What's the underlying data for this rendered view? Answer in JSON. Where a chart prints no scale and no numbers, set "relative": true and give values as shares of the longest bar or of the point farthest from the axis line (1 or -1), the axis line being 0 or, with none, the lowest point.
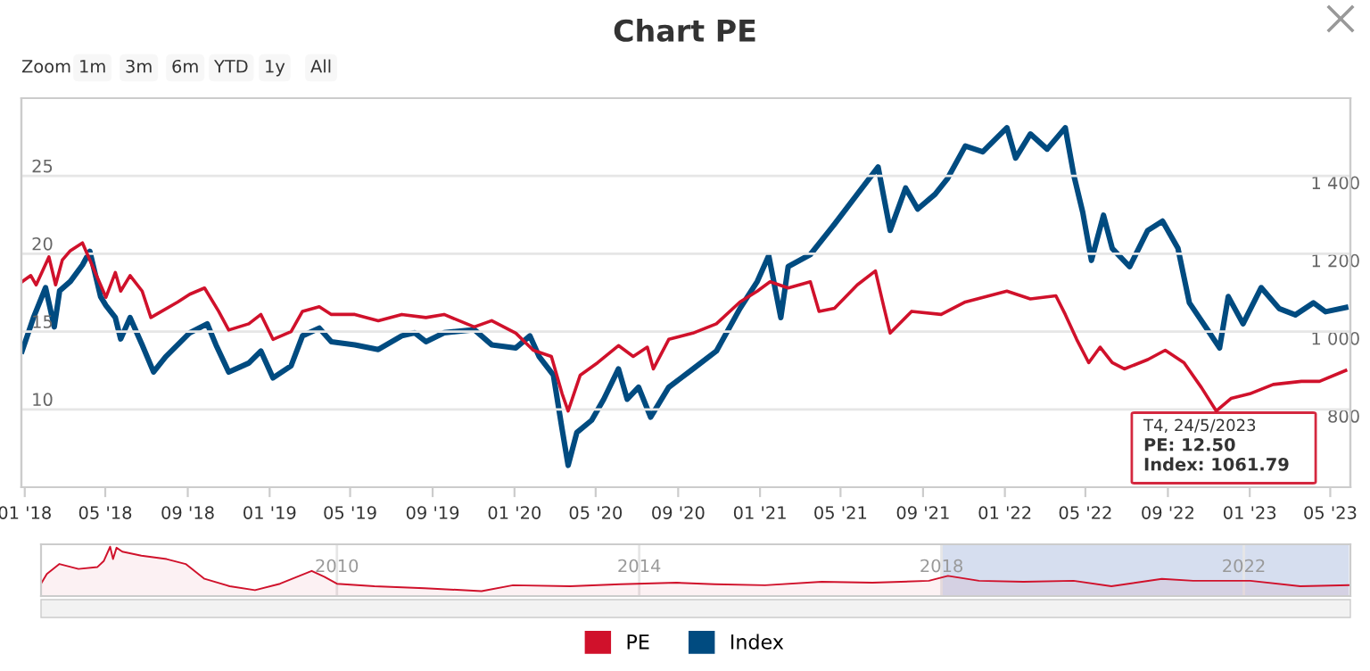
{
  "chart_data": [
    {
      "type": "line",
      "title": "Chart PE",
      "legend": "bottom",
      "grid": "y",
      "xlim": [
        "2017-12-27",
        "2023-05-31"
      ],
      "xticks": [
        {
          "value": "2018-01-01",
          "label": "01 '18"
        },
        {
          "value": "2018-05-01",
          "label": "05 '18"
        },
        {
          "value": "2018-09-01",
          "label": "09 '18"
        },
        {
          "value": "2019-01-01",
          "label": "01 '19"
        },
        {
          "value": "2019-05-01",
          "label": "05 '19"
        },
        {
          "value": "2019-09-01",
          "label": "09 '19"
        },
        {
          "value": "2020-01-01",
          "label": "01 '20"
        },
        {
          "value": "2020-05-01",
          "label": "05 '20"
        },
        {
          "value": "2020-09-01",
          "label": "09 '20"
        },
        {
          "value": "2021-01-01",
          "label": "01 '21"
        },
        {
          "value": "2021-05-01",
          "label": "05 '21"
        },
        {
          "value": "2021-09-01",
          "label": "09 '21"
        },
        {
          "value": "2022-01-01",
          "label": "01 '22"
        },
        {
          "value": "2022-05-01",
          "label": "05 '22"
        },
        {
          "value": "2022-09-01",
          "label": "09 '22"
        },
        {
          "value": "2023-01-01",
          "label": "01 '23"
        },
        {
          "value": "2023-05-01",
          "label": "05 '23"
        }
      ],
      "ylim": [
        5,
        30
      ],
      "yticks": [
        10,
        15,
        20,
        25
      ],
      "y2lim": [
        600,
        1600
      ],
      "y2ticks": [
        {
          "value": 800,
          "label": "800"
        },
        {
          "value": 1000,
          "label": "1 000"
        },
        {
          "value": 1200,
          "label": "1 200"
        },
        {
          "value": 1400,
          "label": "1 400"
        }
      ],
      "annotations": [
        "Zoom",
        "1m",
        "3m",
        "6m",
        "YTD",
        "1y",
        "All",
        "T4, 24/5/2023",
        "PE: 12.50",
        "Index: 1061.79"
      ],
      "series": [
        {
          "name": "PE",
          "color": "#d0112b",
          "x": [
            "2017-12-28",
            "2018-01-10",
            "2018-01-18",
            "2018-02-06",
            "2018-02-16",
            "2018-02-26",
            "2018-03-10",
            "2018-03-28",
            "2018-04-24",
            "2018-05-02",
            "2018-05-16",
            "2018-05-24",
            "2018-06-07",
            "2018-06-25",
            "2018-07-08",
            "2018-07-16",
            "2018-08-17",
            "2018-09-04",
            "2018-09-26",
            "2018-10-17",
            "2018-11-01",
            "2018-12-01",
            "2018-12-19",
            "2019-01-06",
            "2019-02-02",
            "2019-02-19",
            "2019-03-16",
            "2019-04-03",
            "2019-05-08",
            "2019-06-12",
            "2019-07-17",
            "2019-08-22",
            "2019-09-18",
            "2019-11-02",
            "2019-11-28",
            "2020-01-03",
            "2020-01-29",
            "2020-02-25",
            "2020-03-12",
            "2020-03-21",
            "2020-04-08",
            "2020-05-04",
            "2020-06-04",
            "2020-06-26",
            "2020-07-17",
            "2020-07-26",
            "2020-08-18",
            "2020-09-23",
            "2020-10-28",
            "2020-12-02",
            "2020-12-28",
            "2021-01-16",
            "2021-02-12",
            "2021-03-17",
            "2021-03-30",
            "2021-04-22",
            "2021-05-26",
            "2021-06-22",
            "2021-07-05",
            "2021-07-14",
            "2021-08-15",
            "2021-09-28",
            "2021-11-03",
            "2022-01-04",
            "2022-02-08",
            "2022-03-18",
            "2022-04-01",
            "2022-04-18",
            "2022-05-06",
            "2022-05-23",
            "2022-06-10",
            "2022-06-28",
            "2022-08-02",
            "2022-08-28",
            "2022-09-25",
            "2022-10-21",
            "2022-11-12",
            "2022-12-04",
            "2023-01-01",
            "2023-02-05",
            "2023-03-19",
            "2023-04-15",
            "2023-05-24"
          ],
          "values": [
            18.2,
            18.6,
            18.0,
            19.8,
            18.0,
            19.6,
            20.2,
            20.7,
            18.0,
            17.2,
            18.8,
            17.6,
            18.6,
            17.6,
            15.9,
            16.1,
            16.9,
            17.4,
            17.8,
            16.3,
            15.1,
            15.5,
            16.1,
            14.5,
            15.0,
            16.3,
            16.6,
            16.1,
            16.1,
            15.7,
            16.1,
            15.9,
            16.1,
            15.3,
            15.7,
            14.9,
            13.8,
            13.4,
            11.0,
            9.9,
            12.2,
            13.0,
            14.1,
            13.4,
            14.0,
            12.6,
            14.5,
            14.9,
            15.5,
            16.9,
            17.6,
            18.2,
            17.8,
            18.2,
            16.3,
            16.5,
            18.0,
            18.9,
            16.5,
            14.9,
            16.3,
            16.1,
            16.9,
            17.6,
            17.1,
            17.3,
            16.1,
            14.5,
            13.0,
            14.0,
            13.0,
            12.6,
            13.2,
            13.8,
            13.0,
            11.4,
            9.9,
            10.7,
            11.0,
            11.6,
            11.8,
            11.8,
            12.5
          ]
        },
        {
          "name": "Index",
          "color": "#004b80",
          "axis": "y2",
          "x": [
            "2017-12-28",
            "2018-01-14",
            "2018-02-01",
            "2018-02-14",
            "2018-02-22",
            "2018-03-10",
            "2018-03-28",
            "2018-04-08",
            "2018-04-24",
            "2018-05-02",
            "2018-05-16",
            "2018-05-24",
            "2018-06-07",
            "2018-06-25",
            "2018-07-12",
            "2018-07-30",
            "2018-09-04",
            "2018-09-30",
            "2018-10-13",
            "2018-11-01",
            "2018-12-01",
            "2018-12-19",
            "2019-01-06",
            "2019-02-02",
            "2019-02-19",
            "2019-03-16",
            "2019-04-03",
            "2019-05-08",
            "2019-06-12",
            "2019-07-17",
            "2019-08-05",
            "2019-08-22",
            "2019-09-18",
            "2019-11-02",
            "2019-11-28",
            "2020-01-03",
            "2020-01-24",
            "2020-02-07",
            "2020-02-28",
            "2020-03-12",
            "2020-03-21",
            "2020-04-03",
            "2020-04-25",
            "2020-05-13",
            "2020-06-04",
            "2020-06-17",
            "2020-07-04",
            "2020-07-22",
            "2020-08-18",
            "2020-09-23",
            "2020-10-28",
            "2020-12-02",
            "2020-12-28",
            "2021-01-14",
            "2021-02-01",
            "2021-02-12",
            "2021-03-17",
            "2021-04-22",
            "2021-05-26",
            "2021-06-26",
            "2021-07-14",
            "2021-08-06",
            "2021-08-24",
            "2021-09-19",
            "2021-10-07",
            "2021-11-03",
            "2021-11-29",
            "2022-01-04",
            "2022-01-17",
            "2022-02-08",
            "2022-03-05",
            "2022-04-01",
            "2022-04-14",
            "2022-04-27",
            "2022-05-10",
            "2022-05-28",
            "2022-06-10",
            "2022-07-06",
            "2022-08-02",
            "2022-08-24",
            "2022-09-16",
            "2022-10-03",
            "2022-10-30",
            "2022-11-17",
            "2022-11-30",
            "2022-12-22",
            "2023-01-18",
            "2023-02-14",
            "2023-03-10",
            "2023-04-06",
            "2023-04-24",
            "2023-05-24"
          ],
          "values": [
            950,
            1036,
            1113,
            1012,
            1105,
            1129,
            1171,
            1206,
            1090,
            1067,
            1036,
            981,
            1036,
            966,
            896,
            935,
            997,
            1020,
            966,
            896,
            919,
            950,
            881,
            912,
            989,
            1009,
            974,
            966,
            954,
            989,
            997,
            974,
            997,
            1005,
            966,
            958,
            989,
            935,
            888,
            749,
            656,
            741,
            772,
            826,
            904,
            826,
            857,
            780,
            857,
            904,
            950,
            1059,
            1129,
            1195,
            1036,
            1167,
            1198,
            1276,
            1353,
            1423,
            1260,
            1369,
            1315,
            1353,
            1392,
            1477,
            1462,
            1524,
            1446,
            1508,
            1469,
            1524,
            1400,
            1307,
            1183,
            1299,
            1214,
            1167,
            1260,
            1284,
            1214,
            1074,
            1005,
            958,
            1090,
            1020,
            1113,
            1059,
            1043,
            1074,
            1051,
            1062
          ]
        }
      ]
    },
    {
      "type": "area",
      "relative": true,
      "grid": "x",
      "tick_labels": "x",
      "color": "#d0112b",
      "xlim": [
        "2006-02-01",
        "2023-05-31"
      ],
      "xticks": [
        {
          "value": "2010-01-01",
          "label": "2010"
        },
        {
          "value": "2014-01-01",
          "label": "2014"
        },
        {
          "value": "2018-01-01",
          "label": "2018"
        },
        {
          "value": "2022-01-01",
          "label": "2022"
        }
      ],
      "bands": [
        {
          "axis": "x",
          "from": "2017-12-28",
          "to": "2023-05-24",
          "color": "#ccd6eb"
        }
      ],
      "x": [
        "2006-02-01",
        "2006-03-01",
        "2006-05-01",
        "2006-08-01",
        "2006-11-01",
        "2006-12-01",
        "2007-01-01",
        "2007-01-15",
        "2007-02-01",
        "2007-03-01",
        "2007-06-01",
        "2007-10-01",
        "2008-01-01",
        "2008-04-01",
        "2008-08-01",
        "2008-12-01",
        "2009-04-01",
        "2009-09-01",
        "2009-11-01",
        "2010-01-01",
        "2010-07-01",
        "2011-03-01",
        "2011-12-01",
        "2012-05-01",
        "2013-02-01",
        "2013-10-01",
        "2014-07-01",
        "2015-01-01",
        "2015-09-01",
        "2016-06-01",
        "2017-02-01",
        "2017-11-01",
        "2018-02-01",
        "2018-07-01",
        "2019-02-01",
        "2019-10-01",
        "2020-04-01",
        "2020-12-01",
        "2021-05-01",
        "2022-02-01",
        "2022-10-01",
        "2023-05-24"
      ],
      "values": [
        0.25,
        0.45,
        0.65,
        0.55,
        0.59,
        0.71,
        1,
        0.75,
        0.98,
        0.9,
        0.82,
        0.75,
        0.65,
        0.35,
        0.2,
        0.12,
        0.25,
        0.51,
        0.39,
        0.25,
        0.2,
        0.16,
        0.1,
        0.22,
        0.2,
        0.24,
        0.27,
        0.24,
        0.22,
        0.29,
        0.27,
        0.31,
        0.41,
        0.31,
        0.29,
        0.31,
        0.2,
        0.35,
        0.31,
        0.31,
        0.2,
        0.22
      ]
    }
  ]
}
